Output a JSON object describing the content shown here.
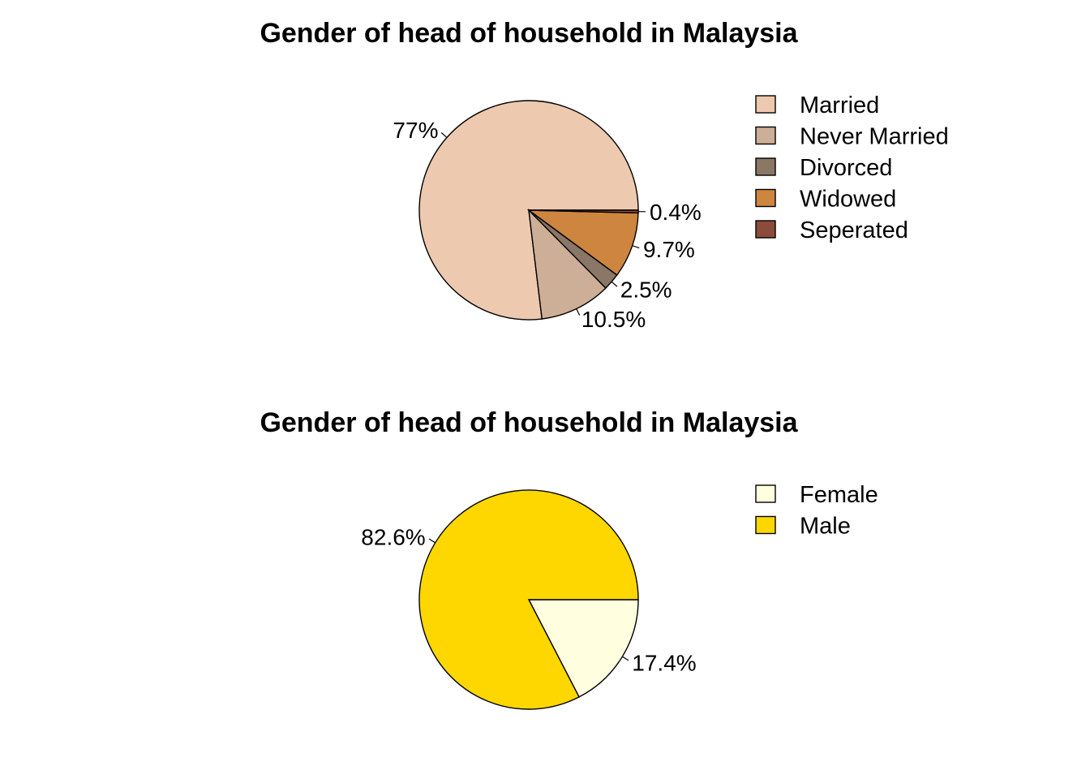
{
  "chart_data": [
    {
      "type": "pie",
      "title": "Gender of head of household in Malaysia",
      "slices": [
        {
          "label": "Married",
          "value": 77.0,
          "value_label": "77%",
          "color": "#EDC9AF"
        },
        {
          "label": "Never Married",
          "value": 10.5,
          "value_label": "10.5%",
          "color": "#CDAE96"
        },
        {
          "label": "Divorced",
          "value": 2.5,
          "value_label": "2.5%",
          "color": "#8B7765"
        },
        {
          "label": "Widowed",
          "value": 9.7,
          "value_label": "9.7%",
          "color": "#CD853F"
        },
        {
          "label": "Seperated",
          "value": 0.4,
          "value_label": "0.4%",
          "color": "#8B4C39"
        }
      ],
      "direction": "counterclockwise",
      "start": "east",
      "legend_position": "right"
    },
    {
      "type": "pie",
      "title": "Gender of head of household in Malaysia",
      "slices": [
        {
          "label": "Female",
          "value": 17.4,
          "value_label": "17.4%",
          "color": "#FFFFE0"
        },
        {
          "label": "Male",
          "value": 82.6,
          "value_label": "82.6%",
          "color": "#FFD700"
        }
      ],
      "direction": "clockwise",
      "start": "east",
      "legend_position": "right"
    }
  ]
}
